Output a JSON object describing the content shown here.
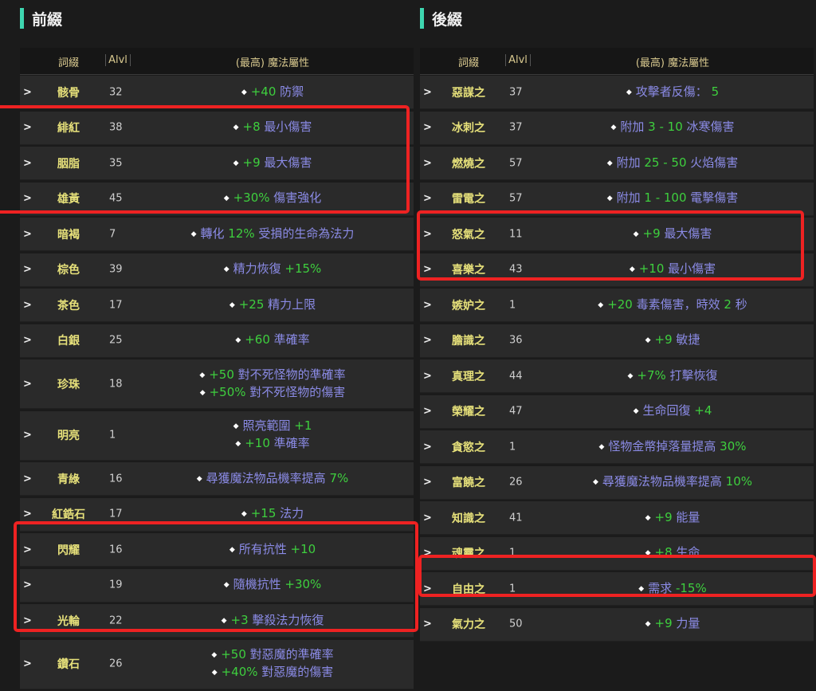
{
  "colors": {
    "accent": "#3ed6b0",
    "name": "#e6e07a",
    "text": "#8b8be6",
    "value": "#3ecf3e",
    "header": "#d9c98f",
    "highlight": "#ee2222"
  },
  "prefix": {
    "title": "前綴",
    "headers": {
      "name": "詞綴",
      "alvl": "Alvl",
      "stat": "(最高) 魔法屬性"
    },
    "rows": [
      {
        "name": "骸骨",
        "alvl": "32",
        "lines": [
          [
            [
              "+40",
              "v"
            ],
            [
              " 防禦",
              "t"
            ]
          ]
        ]
      },
      {
        "name": "緋紅",
        "alvl": "38",
        "lines": [
          [
            [
              "+8",
              "v"
            ],
            [
              " 最小傷害",
              "t"
            ]
          ]
        ]
      },
      {
        "name": "胭脂",
        "alvl": "35",
        "lines": [
          [
            [
              "+9",
              "v"
            ],
            [
              " 最大傷害",
              "t"
            ]
          ]
        ]
      },
      {
        "name": "雄黃",
        "alvl": "45",
        "lines": [
          [
            [
              "+30%",
              "v"
            ],
            [
              " 傷害強化",
              "t"
            ]
          ]
        ]
      },
      {
        "name": "暗褐",
        "alvl": "7",
        "lines": [
          [
            [
              "轉化 ",
              "t"
            ],
            [
              "12%",
              "v"
            ],
            [
              " 受損的生命為法力",
              "t"
            ]
          ]
        ]
      },
      {
        "name": "棕色",
        "alvl": "39",
        "lines": [
          [
            [
              "精力恢復 ",
              "t"
            ],
            [
              "+15%",
              "v"
            ]
          ]
        ]
      },
      {
        "name": "茶色",
        "alvl": "17",
        "lines": [
          [
            [
              "+25",
              "v"
            ],
            [
              " 精力上限",
              "t"
            ]
          ]
        ]
      },
      {
        "name": "白銀",
        "alvl": "25",
        "lines": [
          [
            [
              "+60",
              "v"
            ],
            [
              " 準確率",
              "t"
            ]
          ]
        ]
      },
      {
        "name": "珍珠",
        "alvl": "18",
        "lines": [
          [
            [
              "+50",
              "v"
            ],
            [
              " 對不死怪物的準確率",
              "t"
            ]
          ],
          [
            [
              "+50%",
              "v"
            ],
            [
              " 對不死怪物的傷害",
              "t"
            ]
          ]
        ]
      },
      {
        "name": "明亮",
        "alvl": "1",
        "lines": [
          [
            [
              "照亮範圍 ",
              "t"
            ],
            [
              "+1",
              "v"
            ]
          ],
          [
            [
              "+10",
              "v"
            ],
            [
              " 準確率",
              "t"
            ]
          ]
        ]
      },
      {
        "name": "青綠",
        "alvl": "16",
        "lines": [
          [
            [
              "尋獲魔法物品機率提高 ",
              "t"
            ],
            [
              "7%",
              "v"
            ]
          ]
        ]
      },
      {
        "name": "紅鋯石",
        "alvl": "17",
        "lines": [
          [
            [
              "+15",
              "v"
            ],
            [
              " 法力",
              "t"
            ]
          ]
        ]
      },
      {
        "name": "閃耀",
        "alvl": "16",
        "lines": [
          [
            [
              "所有抗性 ",
              "t"
            ],
            [
              "+10",
              "v"
            ]
          ]
        ]
      },
      {
        "name": "",
        "alvl": "19",
        "lines": [
          [
            [
              "隨機抗性 ",
              "t"
            ],
            [
              "+30%",
              "v"
            ]
          ]
        ]
      },
      {
        "name": "光輪",
        "alvl": "22",
        "lines": [
          [
            [
              "+3",
              "v"
            ],
            [
              " 擊殺法力恢復",
              "t"
            ]
          ]
        ]
      },
      {
        "name": "鑽石",
        "alvl": "26",
        "lines": [
          [
            [
              "+50",
              "v"
            ],
            [
              " 對惡魔的準確率",
              "t"
            ]
          ],
          [
            [
              "+40%",
              "v"
            ],
            [
              " 對惡魔的傷害",
              "t"
            ]
          ]
        ]
      }
    ]
  },
  "suffix": {
    "title": "後綴",
    "headers": {
      "name": "詞綴",
      "alvl": "Alvl",
      "stat": "(最高) 魔法屬性"
    },
    "rows": [
      {
        "name": "惡謀之",
        "alvl": "37",
        "lines": [
          [
            [
              "攻擊者反傷： ",
              "t"
            ],
            [
              "5",
              "v"
            ]
          ]
        ]
      },
      {
        "name": "冰刺之",
        "alvl": "37",
        "lines": [
          [
            [
              "附加 ",
              "t"
            ],
            [
              "3 - 10",
              "v"
            ],
            [
              " 冰寒傷害",
              "t"
            ]
          ]
        ]
      },
      {
        "name": "燃燒之",
        "alvl": "57",
        "lines": [
          [
            [
              "附加 ",
              "t"
            ],
            [
              "25 - 50",
              "v"
            ],
            [
              " 火焰傷害",
              "t"
            ]
          ]
        ]
      },
      {
        "name": "雷電之",
        "alvl": "57",
        "lines": [
          [
            [
              "附加 ",
              "t"
            ],
            [
              "1 - 100",
              "v"
            ],
            [
              " 電擊傷害",
              "t"
            ]
          ]
        ]
      },
      {
        "name": "怒氣之",
        "alvl": "11",
        "lines": [
          [
            [
              "+9",
              "v"
            ],
            [
              " 最大傷害",
              "t"
            ]
          ]
        ]
      },
      {
        "name": "喜樂之",
        "alvl": "43",
        "lines": [
          [
            [
              "+10",
              "v"
            ],
            [
              " 最小傷害",
              "t"
            ]
          ]
        ]
      },
      {
        "name": "嫉妒之",
        "alvl": "1",
        "lines": [
          [
            [
              "+20",
              "v"
            ],
            [
              " 毒素傷害，時效 ",
              "t"
            ],
            [
              "2",
              "v"
            ],
            [
              " 秒",
              "t"
            ]
          ]
        ]
      },
      {
        "name": "膽識之",
        "alvl": "36",
        "lines": [
          [
            [
              "+9",
              "v"
            ],
            [
              " 敏捷",
              "t"
            ]
          ]
        ]
      },
      {
        "name": "真理之",
        "alvl": "44",
        "lines": [
          [
            [
              "+7%",
              "v"
            ],
            [
              " 打擊恢復",
              "t"
            ]
          ]
        ]
      },
      {
        "name": "榮耀之",
        "alvl": "47",
        "lines": [
          [
            [
              "生命回復 ",
              "t"
            ],
            [
              "+4",
              "v"
            ]
          ]
        ]
      },
      {
        "name": "貪慾之",
        "alvl": "1",
        "lines": [
          [
            [
              "怪物金幣掉落量提高 ",
              "t"
            ],
            [
              "30%",
              "v"
            ]
          ]
        ]
      },
      {
        "name": "富饒之",
        "alvl": "26",
        "lines": [
          [
            [
              "尋獲魔法物品機率提高 ",
              "t"
            ],
            [
              "10%",
              "v"
            ]
          ]
        ]
      },
      {
        "name": "知識之",
        "alvl": "41",
        "lines": [
          [
            [
              "+9",
              "v"
            ],
            [
              " 能量",
              "t"
            ]
          ]
        ]
      },
      {
        "name": "魂靈之",
        "alvl": "1",
        "lines": [
          [
            [
              "+8",
              "v"
            ],
            [
              " 生命",
              "t"
            ]
          ]
        ]
      },
      {
        "name": "自由之",
        "alvl": "1",
        "lines": [
          [
            [
              "需求 ",
              "t"
            ],
            [
              "-15%",
              "v"
            ]
          ]
        ]
      },
      {
        "name": "氣力之",
        "alvl": "50",
        "lines": [
          [
            [
              "+9",
              "v"
            ],
            [
              " 力量",
              "t"
            ]
          ]
        ]
      }
    ]
  }
}
